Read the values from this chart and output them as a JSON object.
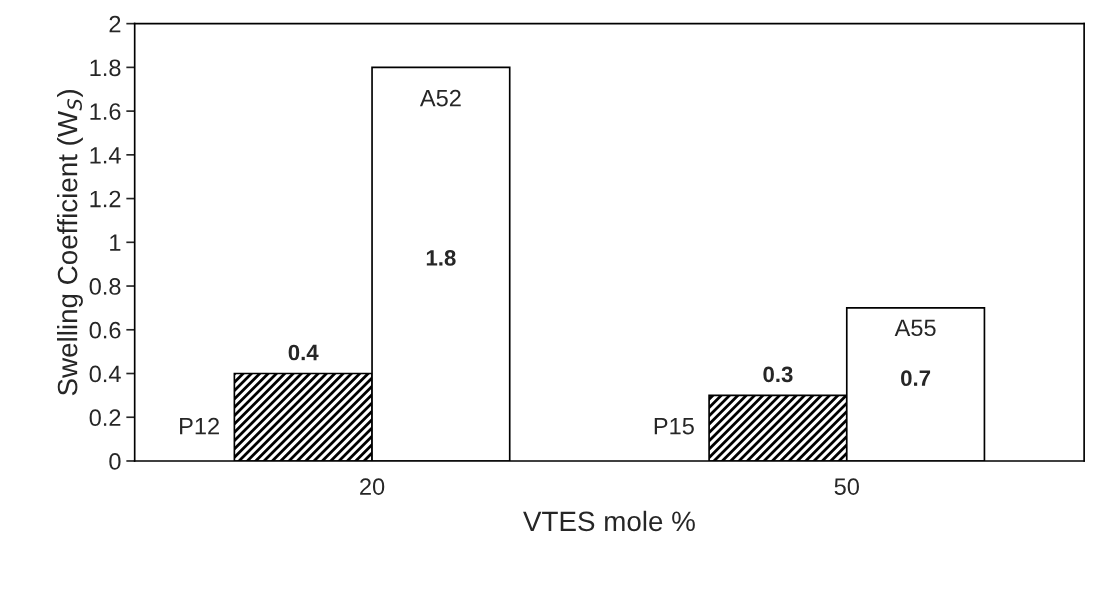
{
  "chart_data": {
    "type": "bar",
    "xlabel": "VTES mole %",
    "ylabel": "Swelling Coefficient (W$_{S}$)",
    "categories": [
      "20",
      "50"
    ],
    "series": [
      {
        "color": "#000000",
        "values": [
          0.4,
          0.3
        ]
      },
      {
        "color": "#ffffff",
        "values": [
          1.8,
          0.7
        ]
      }
    ],
    "ylim": [
      0,
      2
    ],
    "yticks": [
      0,
      0.2,
      0.4,
      0.6,
      0.8,
      1,
      1.2,
      1.4,
      1.6,
      1.8,
      2
    ],
    "data_labels": true,
    "grid": false,
    "legend": false,
    "annotations": [
      "P12",
      {
        "text": "A52",
        "x": "20",
        "y": 1.65
      },
      "P15",
      {
        "text": "A55",
        "x": "50",
        "y": 0.6
      }
    ]
  }
}
